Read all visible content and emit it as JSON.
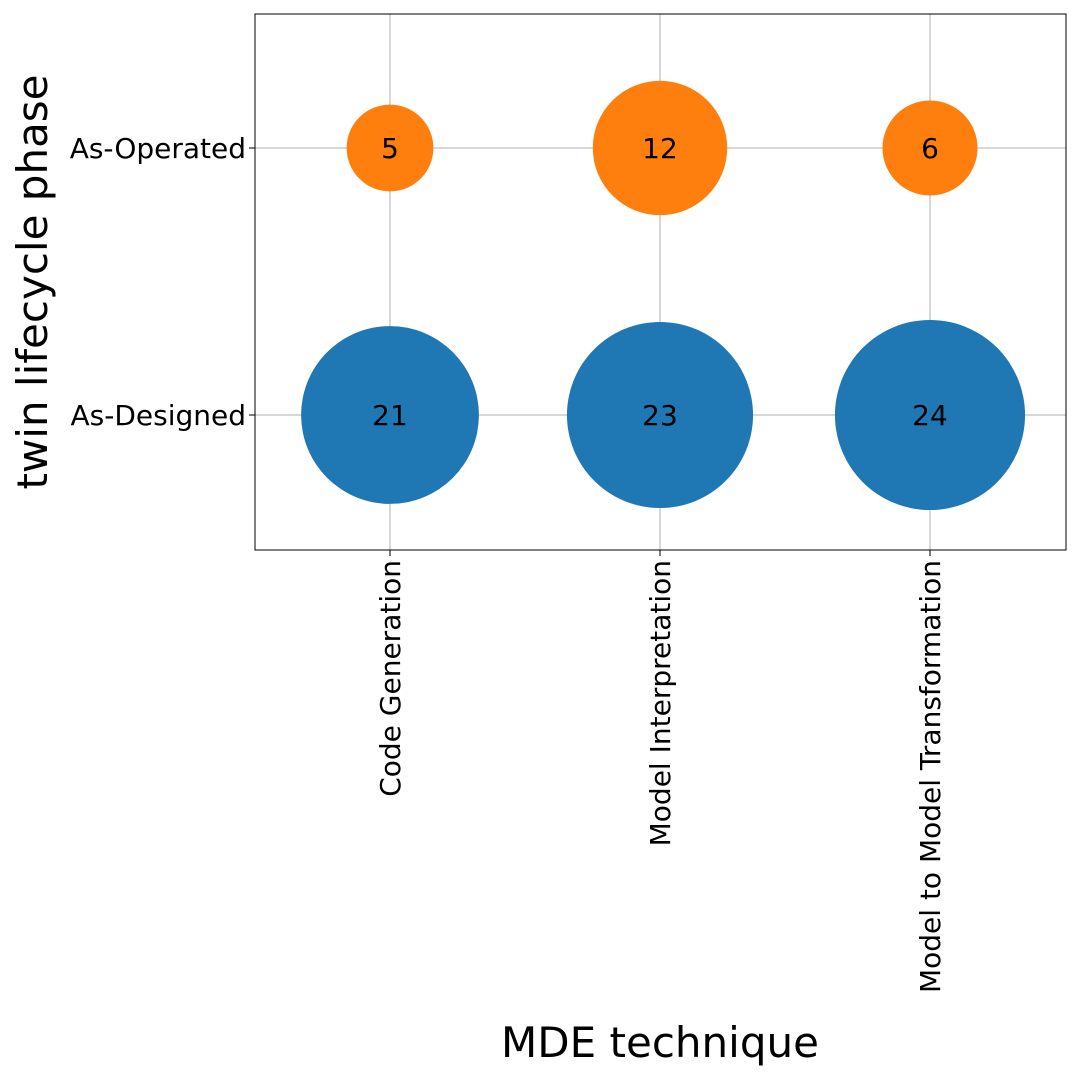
{
  "chart_data": {
    "type": "scatter",
    "subtype": "bubble",
    "xlabel": "MDE technique",
    "ylabel": "twin lifecycle phase",
    "x_categories": [
      "Code Generation",
      "Model Interpretation",
      "Model to Model Transformation"
    ],
    "y_categories": [
      "As-Designed",
      "As-Operated"
    ],
    "grid": true,
    "series": [
      {
        "y_category": "As-Designed",
        "color": "#1f77b4",
        "values": [
          21,
          23,
          24
        ]
      },
      {
        "y_category": "As-Operated",
        "color": "#ff7f0e",
        "values": [
          5,
          12,
          6
        ]
      }
    ]
  }
}
